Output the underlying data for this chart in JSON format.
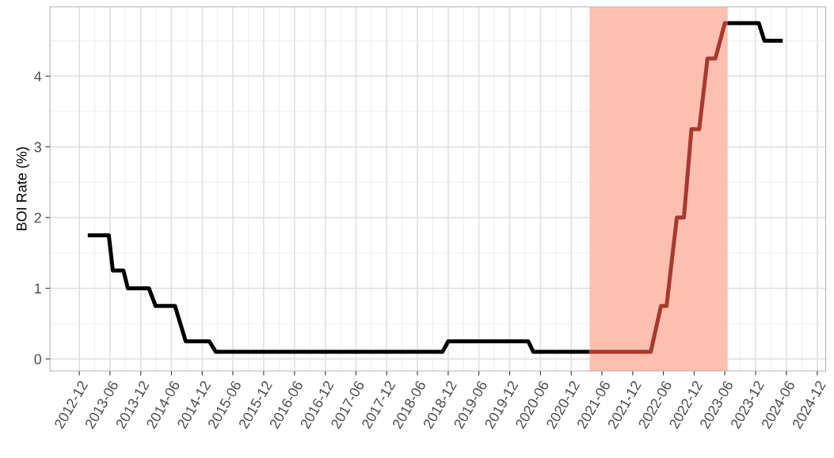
{
  "chart_data": {
    "type": "line",
    "ylabel": "BOI Rate (%)",
    "series": [
      {
        "color": "#000000",
        "x": [
          "2013-01-20",
          "2013-05-25",
          "2013-06-18",
          "2013-08-20",
          "2013-09-15",
          "2014-01-18",
          "2014-02-27",
          "2014-06-22",
          "2014-08-25",
          "2015-01-12",
          "2015-02-20",
          "2018-10-28",
          "2018-12-01",
          "2020-03-20",
          "2020-04-20",
          "2021-03-20"
        ],
        "values": [
          1.75,
          1.75,
          1.25,
          1.25,
          1.0,
          1.0,
          0.75,
          0.75,
          0.25,
          0.25,
          0.1,
          0.1,
          0.25,
          0.25,
          0.1,
          0.1
        ]
      },
      {
        "color": "#a63a2e",
        "x": [
          "2021-03-20",
          "2022-03-18",
          "2022-05-18",
          "2022-06-20",
          "2022-08-20",
          "2022-10-01",
          "2022-11-15",
          "2022-12-31",
          "2023-02-18",
          "2023-04-06",
          "2023-06-01",
          "2023-06-18"
        ],
        "values": [
          0.1,
          0.1,
          0.75,
          0.75,
          2.0,
          2.0,
          3.25,
          3.25,
          4.25,
          4.25,
          4.75,
          4.75
        ]
      },
      {
        "color": "#000000",
        "x": [
          "2023-06-18",
          "2023-12-20",
          "2024-01-22",
          "2024-05-10"
        ],
        "values": [
          4.75,
          4.75,
          4.5,
          4.5
        ]
      }
    ],
    "bands": [
      {
        "axis": "x",
        "from": "2021-03-20",
        "to": "2023-06-18",
        "color": "#fcbfb0"
      }
    ],
    "xlim": [
      "2012-06-10",
      "2025-01-20"
    ],
    "xticks": [
      "2012-12",
      "2013-06",
      "2013-12",
      "2014-06",
      "2014-12",
      "2015-06",
      "2015-12",
      "2016-06",
      "2016-12",
      "2017-06",
      "2017-12",
      "2018-06",
      "2018-12",
      "2019-06",
      "2019-12",
      "2020-06",
      "2020-12",
      "2021-06",
      "2021-12",
      "2022-06",
      "2022-12",
      "2023-06",
      "2023-12",
      "2024-06",
      "2024-12"
    ],
    "ylim": [
      -0.17,
      4.98
    ],
    "yticks": [
      0,
      1,
      2,
      3,
      4
    ],
    "grid": true
  }
}
